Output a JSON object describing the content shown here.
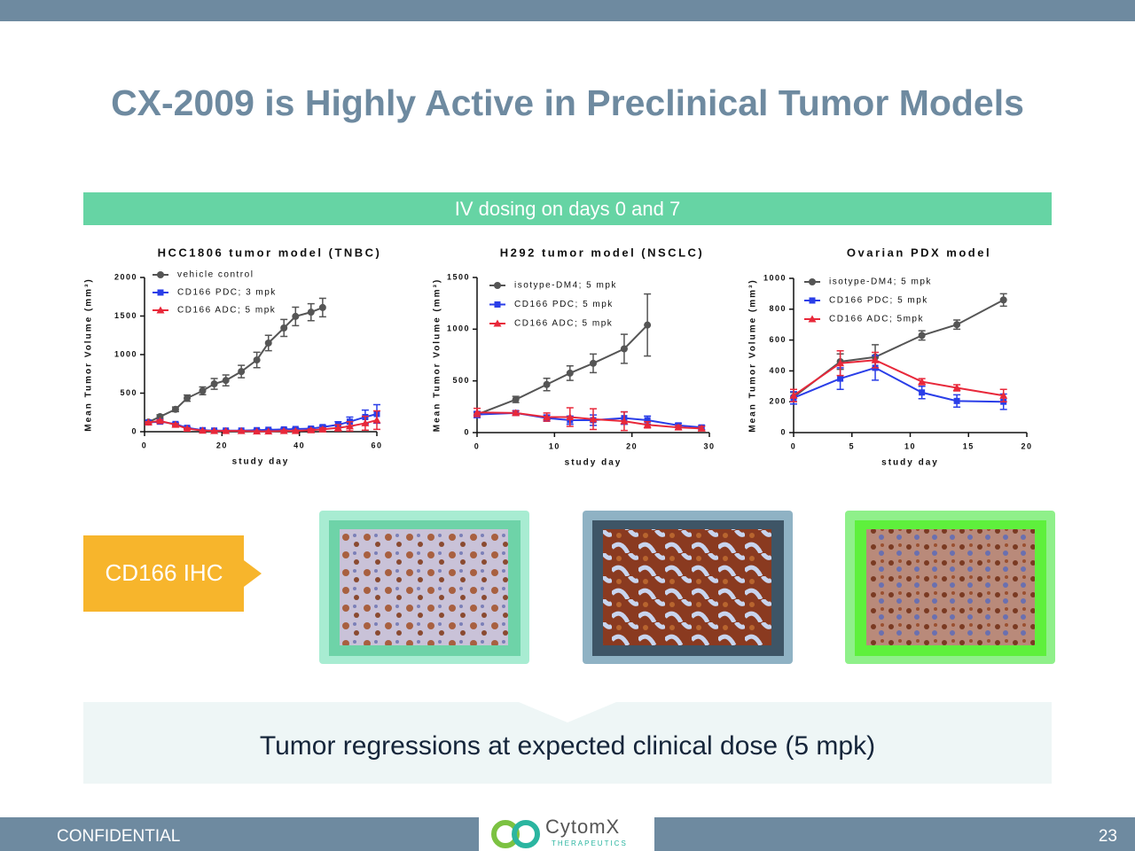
{
  "header": {
    "title": "CX-2009 is Highly Active in Preclinical Tumor Models"
  },
  "banner": "IV dosing on days 0 and 7",
  "ihc_label": "CD166 IHC",
  "callout": "Tumor regressions at expected clinical dose (5 mpk)",
  "footer": {
    "left": "CONFIDENTIAL",
    "logo": "CytomX",
    "logo_sub": "THERAPEUTICS",
    "page": "23"
  },
  "chart_data": [
    {
      "type": "line",
      "title": "HCC1806 tumor model (TNBC)",
      "x_label": "study day",
      "y_label": "Mean Tumor Volume (mm³)",
      "xlim": [
        0,
        60
      ],
      "ylim": [
        0,
        2000
      ],
      "xticks": [
        0,
        20,
        40,
        60
      ],
      "yticks": [
        0,
        500,
        1000,
        1500,
        2000
      ],
      "series": [
        {
          "name": "vehicle control",
          "color": "#555555",
          "marker": "circle",
          "x": [
            1,
            4,
            8,
            11,
            15,
            18,
            21,
            25,
            29,
            32,
            36,
            39,
            43,
            46
          ],
          "values": [
            125,
            195,
            290,
            435,
            530,
            620,
            665,
            780,
            930,
            1150,
            1345,
            1495,
            1550,
            1610
          ],
          "errors": [
            20,
            25,
            30,
            40,
            50,
            70,
            70,
            80,
            100,
            100,
            110,
            120,
            110,
            120
          ]
        },
        {
          "name": "CD166 PDC; 3 mpk",
          "color": "#2a3ee8",
          "marker": "square",
          "x": [
            1,
            4,
            8,
            11,
            15,
            18,
            21,
            25,
            29,
            32,
            36,
            39,
            43,
            46,
            50,
            53,
            57,
            60
          ],
          "values": [
            120,
            130,
            100,
            50,
            20,
            15,
            15,
            15,
            20,
            25,
            30,
            35,
            40,
            60,
            90,
            130,
            190,
            230
          ],
          "errors": [
            10,
            15,
            15,
            10,
            5,
            5,
            5,
            5,
            10,
            10,
            15,
            15,
            15,
            20,
            40,
            60,
            90,
            120
          ]
        },
        {
          "name": "CD166 ADC; 5 mpk",
          "color": "#e8283a",
          "marker": "triangle",
          "x": [
            1,
            4,
            8,
            11,
            15,
            18,
            21,
            25,
            29,
            32,
            36,
            39,
            43,
            46,
            50,
            53,
            57,
            60
          ],
          "values": [
            120,
            140,
            90,
            40,
            15,
            10,
            10,
            10,
            5,
            5,
            10,
            10,
            20,
            30,
            50,
            70,
            110,
            150
          ],
          "errors": [
            10,
            15,
            15,
            10,
            5,
            5,
            5,
            5,
            5,
            5,
            10,
            10,
            15,
            20,
            40,
            60,
            90,
            120
          ]
        }
      ]
    },
    {
      "type": "line",
      "title": "H292 tumor model (NSCLC)",
      "x_label": "study day",
      "y_label": "Mean Tumor Volume (mm³)",
      "xlim": [
        0,
        30
      ],
      "ylim": [
        0,
        1500
      ],
      "xticks": [
        0,
        10,
        20,
        30
      ],
      "yticks": [
        0,
        500,
        1000,
        1500
      ],
      "series": [
        {
          "name": "isotype-DM4; 5 mpk",
          "color": "#555555",
          "marker": "circle",
          "x": [
            0,
            5,
            9,
            12,
            15,
            19,
            22
          ],
          "values": [
            175,
            320,
            465,
            575,
            670,
            810,
            1040
          ],
          "errors": [
            20,
            30,
            60,
            70,
            90,
            140,
            300
          ]
        },
        {
          "name": "CD166 PDC; 5 mpk",
          "color": "#2a3ee8",
          "marker": "square",
          "x": [
            0,
            5,
            9,
            12,
            15,
            19,
            22,
            26,
            29
          ],
          "values": [
            175,
            190,
            140,
            120,
            120,
            140,
            120,
            70,
            50
          ],
          "errors": [
            30,
            20,
            30,
            40,
            50,
            60,
            40,
            20,
            20
          ]
        },
        {
          "name": "CD166 ADC; 5 mpk",
          "color": "#e8283a",
          "marker": "triangle",
          "x": [
            0,
            5,
            9,
            12,
            15,
            19,
            22,
            26,
            29
          ],
          "values": [
            195,
            190,
            150,
            150,
            130,
            110,
            75,
            50,
            40
          ],
          "errors": [
            40,
            20,
            40,
            90,
            100,
            90,
            30,
            20,
            20
          ]
        }
      ]
    },
    {
      "type": "line",
      "title": "Ovarian PDX model",
      "x_label": "study day",
      "y_label": "Mean Tumor Volume (mm³)",
      "xlim": [
        0,
        20
      ],
      "ylim": [
        0,
        1000
      ],
      "xticks": [
        0,
        5,
        10,
        15,
        20
      ],
      "yticks": [
        0,
        200,
        400,
        600,
        800,
        1000
      ],
      "series": [
        {
          "name": "isotype-DM4; 5 mpk",
          "color": "#555555",
          "marker": "circle",
          "x": [
            0,
            4,
            7,
            11,
            14,
            18
          ],
          "values": [
            230,
            460,
            490,
            630,
            700,
            860
          ],
          "errors": [
            30,
            50,
            80,
            30,
            30,
            40
          ]
        },
        {
          "name": "CD166 PDC; 5 mpk",
          "color": "#2a3ee8",
          "marker": "square",
          "x": [
            0,
            4,
            7,
            11,
            14,
            18
          ],
          "values": [
            225,
            350,
            420,
            260,
            205,
            200
          ],
          "errors": [
            40,
            70,
            80,
            40,
            40,
            50
          ]
        },
        {
          "name": "CD166 ADC; 5mpk",
          "color": "#e8283a",
          "marker": "triangle",
          "x": [
            0,
            4,
            7,
            11,
            14,
            18
          ],
          "values": [
            240,
            450,
            470,
            330,
            290,
            240
          ],
          "errors": [
            40,
            80,
            50,
            20,
            20,
            40
          ]
        }
      ]
    }
  ]
}
